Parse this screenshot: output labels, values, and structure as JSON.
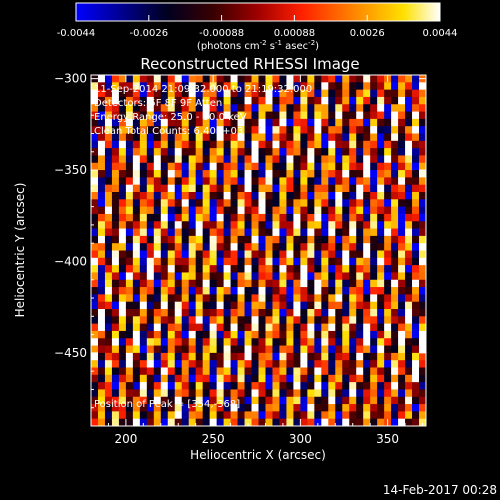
{
  "footer_date": "14-Feb-2017 00:28",
  "colorbar": {
    "ticks": [
      "-0.0044",
      "-0.0026",
      "-0.00088",
      "0.00088",
      "0.0026",
      "0.0044"
    ],
    "unit_main": "(photons cm",
    "unit_sup1": "-2",
    "unit_mid1": " s",
    "unit_sup2": "-1",
    "unit_mid2": " asec",
    "unit_sup3": "-2",
    "unit_end": ")"
  },
  "chart_data": {
    "type": "heatmap",
    "title": "Reconstructed RHESSI Image",
    "xlabel": "Heliocentric X (arcsec)",
    "ylabel": "Heliocentric Y (arcsec)",
    "xlim": [
      180,
      372
    ],
    "ylim": [
      -490,
      -298
    ],
    "xticks": [
      200,
      250,
      300,
      350
    ],
    "yticks": [
      -300,
      -350,
      -400,
      -450
    ],
    "colorbar_range": [
      -0.0044,
      0.0044
    ],
    "colormap": [
      "#0000ff",
      "#000000",
      "#8b0000",
      "#ff0000",
      "#ff8c00",
      "#ffff00",
      "#ffffff"
    ],
    "annotations": [
      "11-Sep-2014 21:09:32.000 to 21:19:32.000",
      "Detectors: 5F 8F 9F Atten",
      "Energy Range: 25.0 - 50.0 keV",
      "Clean     Total Counts: 6.40E+03"
    ],
    "peak_label": "Position of Peak = [354,-368]",
    "peak": [
      354,
      -368
    ]
  }
}
